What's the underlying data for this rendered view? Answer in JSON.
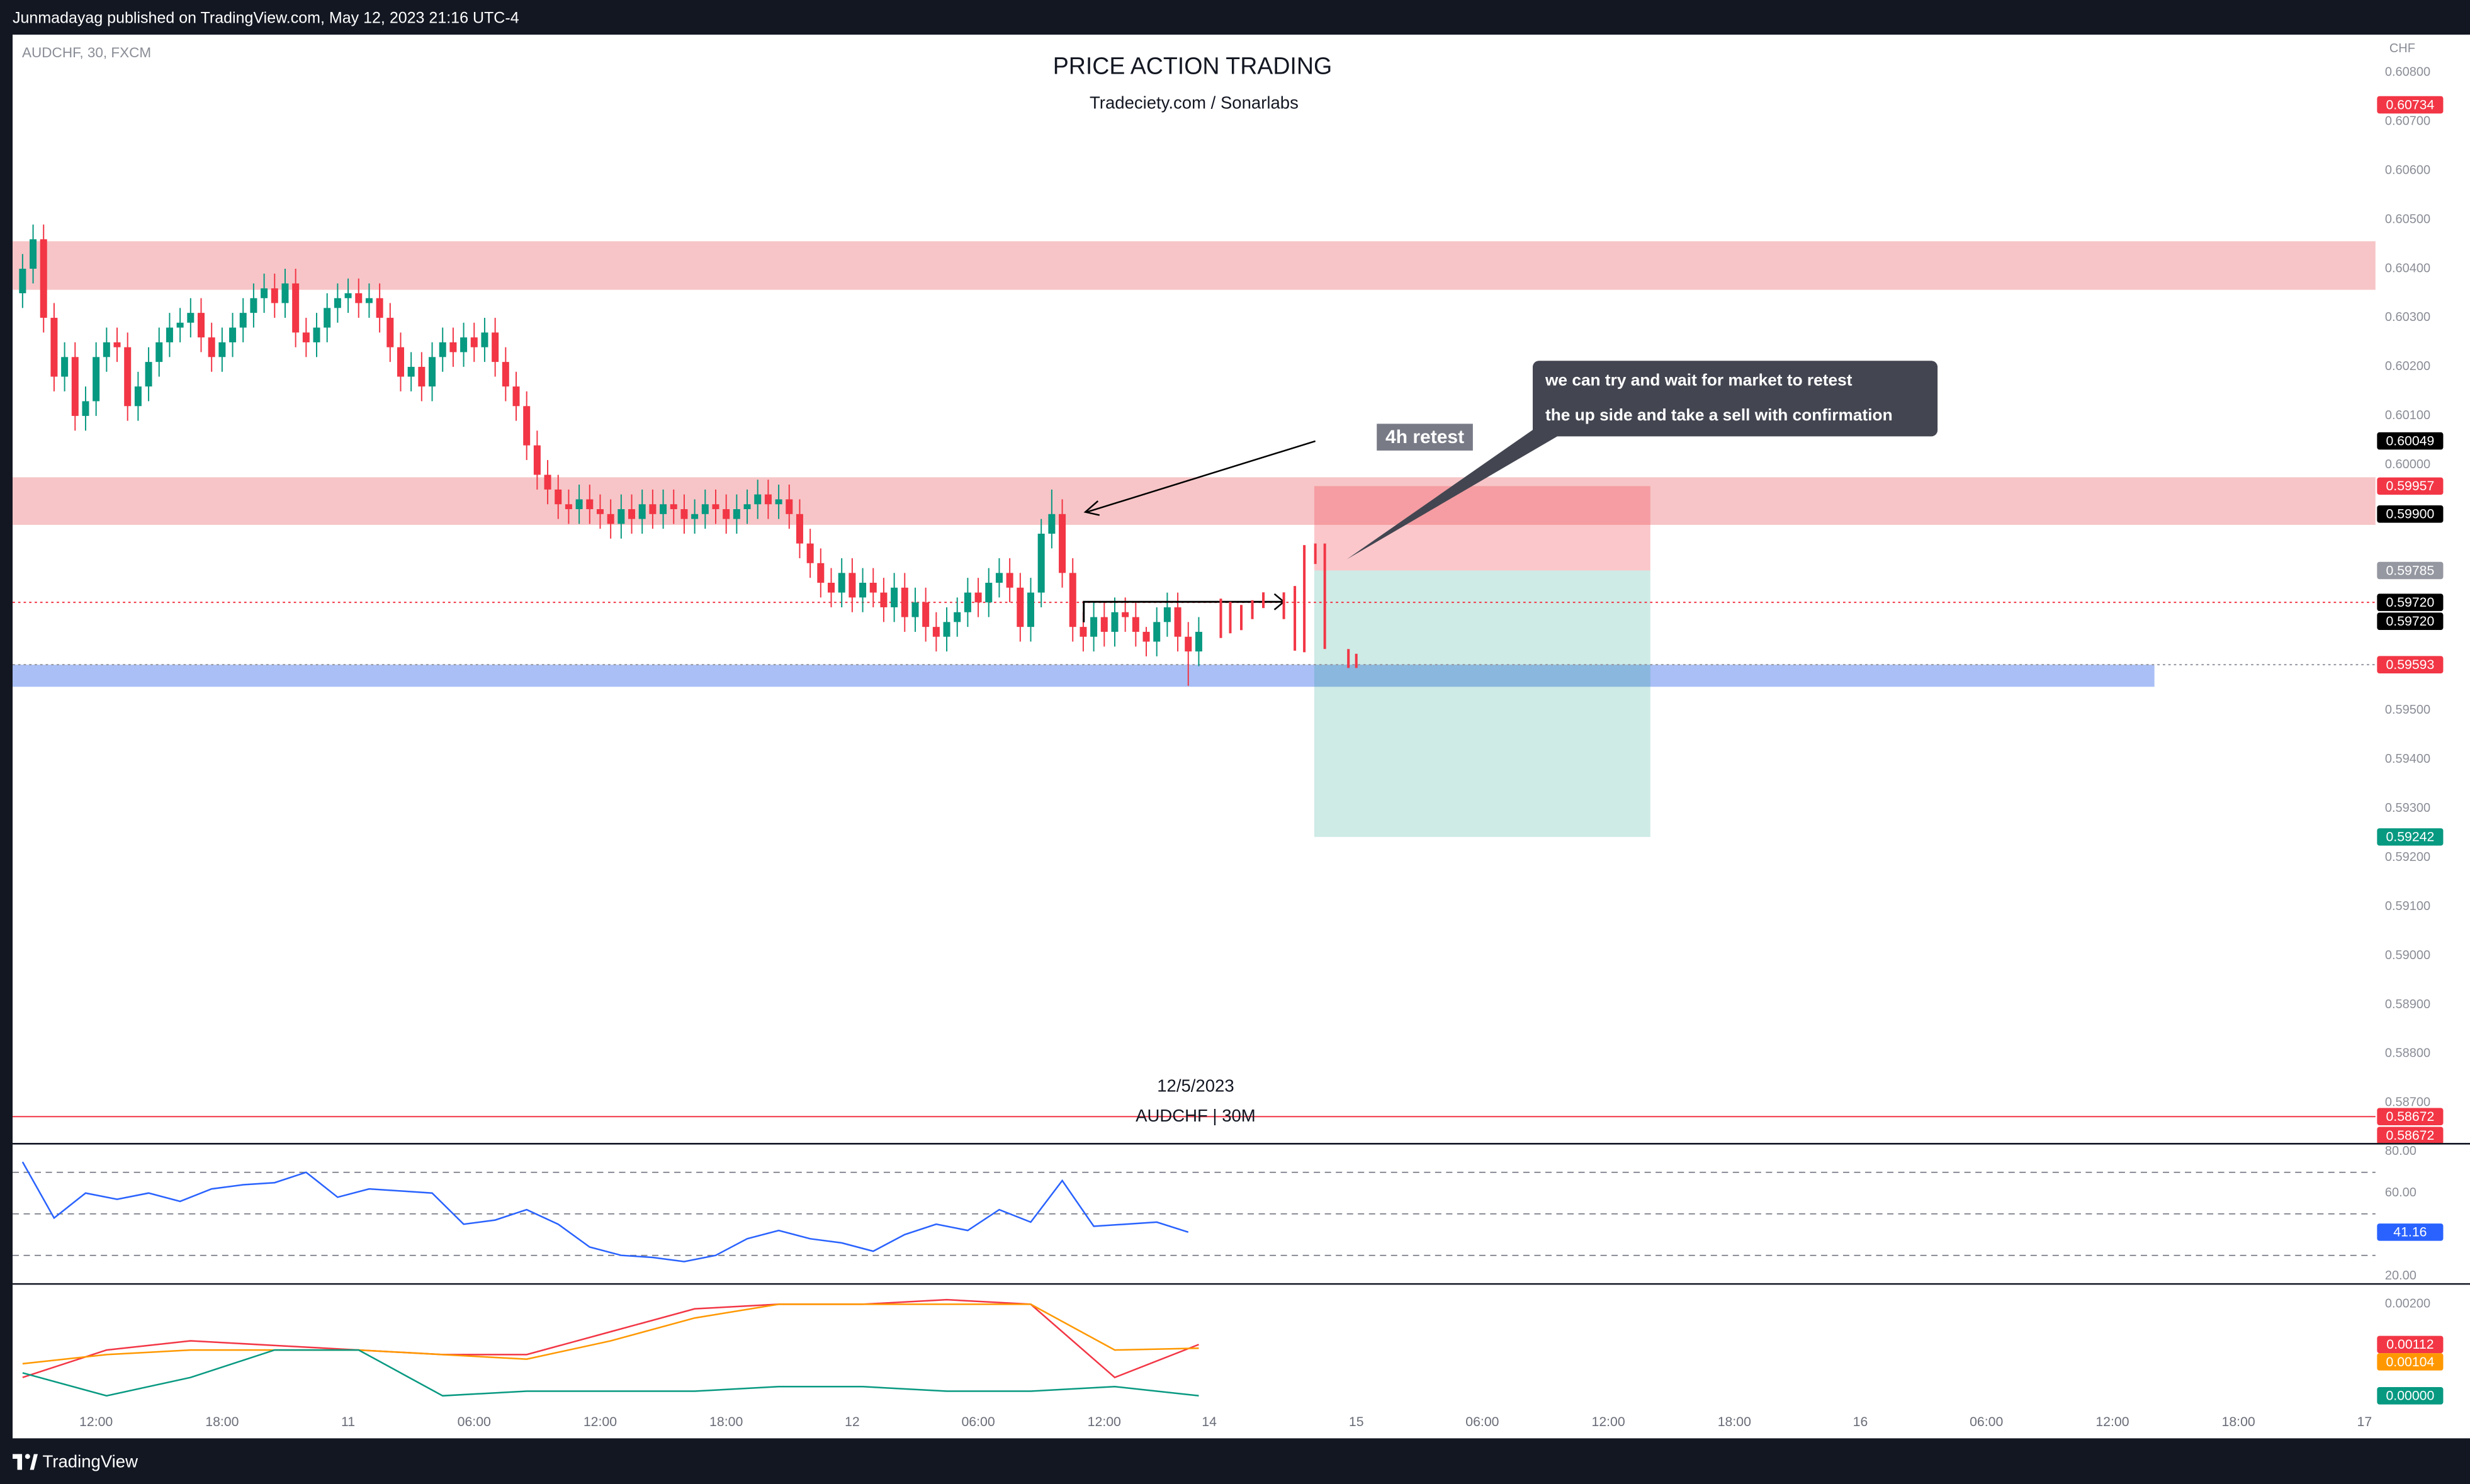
{
  "header": "Junmadayag published on TradingView.com, May 12, 2023 21:16 UTC-4",
  "footer": "TradingView",
  "annotations": {
    "retest": "4h retest",
    "note": [
      "we can try and wait for market to retest",
      "the up side and take a sell with confirmation"
    ],
    "date": "12/5/2023",
    "caption": "AUDCHF | 30M"
  },
  "chart_data": [
    {
      "type": "candlestick",
      "symbol": "AUDCHF, 30, FXCM",
      "title": "PRICE ACTION TRADING",
      "subtitle": "Tradeciety.com / Sonarlabs",
      "currency": "CHF",
      "up_color": "#089981",
      "down_color": "#f23645",
      "x": [
        -7,
        -6,
        -5,
        -4,
        -3,
        -2,
        -1,
        0,
        1,
        2,
        3,
        4,
        5,
        6,
        7,
        8,
        9,
        10,
        11,
        12,
        13,
        14,
        15,
        16,
        17,
        18,
        19,
        20,
        21,
        22,
        23,
        24,
        25,
        26,
        27,
        28,
        29,
        30,
        31,
        32,
        33,
        34,
        35,
        36,
        37,
        38,
        39,
        40,
        41,
        42,
        43,
        44,
        45,
        46,
        47,
        48,
        49,
        50,
        51,
        52,
        53,
        54,
        55,
        56,
        57,
        58,
        59,
        60,
        61,
        62,
        63,
        64,
        65,
        66,
        67,
        68,
        69,
        70,
        71,
        72,
        73,
        74,
        75,
        76,
        77,
        78,
        79,
        80,
        81,
        82,
        83,
        84,
        85,
        86,
        87,
        88,
        89,
        90,
        91,
        92,
        93,
        94,
        95,
        96,
        97,
        98,
        99,
        100,
        101,
        102,
        103,
        104,
        105
      ],
      "open": [
        0.6035,
        0.604,
        0.6046,
        0.603,
        0.6018,
        0.6022,
        0.601,
        0.6013,
        0.6022,
        0.6025,
        0.6024,
        0.6012,
        0.6016,
        0.6021,
        0.6025,
        0.6028,
        0.6029,
        0.6031,
        0.6026,
        0.6022,
        0.6025,
        0.6028,
        0.6031,
        0.6034,
        0.6036,
        0.6033,
        0.6037,
        0.6027,
        0.6025,
        0.6028,
        0.6032,
        0.6034,
        0.6035,
        0.6033,
        0.6034,
        0.603,
        0.6024,
        0.6018,
        0.602,
        0.6016,
        0.6022,
        0.6025,
        0.6023,
        0.6026,
        0.6024,
        0.6027,
        0.6021,
        0.6016,
        0.6012,
        0.6004,
        0.5998,
        0.5995,
        0.5992,
        0.5991,
        0.5993,
        0.5991,
        0.599,
        0.5988,
        0.5991,
        0.5989,
        0.5992,
        0.599,
        0.5992,
        0.5991,
        0.5989,
        0.599,
        0.5992,
        0.5991,
        0.5989,
        0.5991,
        0.5992,
        0.5994,
        0.5992,
        0.5993,
        0.599,
        0.5984,
        0.598,
        0.5976,
        0.5974,
        0.5978,
        0.5973,
        0.5976,
        0.5974,
        0.5971,
        0.5975,
        0.5969,
        0.5972,
        0.5967,
        0.5965,
        0.5968,
        0.597,
        0.5974,
        0.5972,
        0.5976,
        0.5978,
        0.5975,
        0.5967,
        0.5974,
        0.5986,
        0.599,
        0.5978,
        0.5967,
        0.5965,
        0.5969,
        0.5966,
        0.597,
        0.5969,
        0.5966,
        0.5964,
        0.5968,
        0.5971,
        0.5965,
        0.5962
      ],
      "high": [
        0.6043,
        0.6049,
        0.6049,
        0.6033,
        0.6025,
        0.6025,
        0.6016,
        0.6025,
        0.6028,
        0.6028,
        0.6027,
        0.6019,
        0.6024,
        0.6028,
        0.6031,
        0.6032,
        0.6034,
        0.6034,
        0.6029,
        0.6028,
        0.6031,
        0.6034,
        0.6037,
        0.6039,
        0.6039,
        0.604,
        0.604,
        0.603,
        0.6031,
        0.6035,
        0.6037,
        0.6038,
        0.6038,
        0.6037,
        0.6037,
        0.6033,
        0.6027,
        0.6023,
        0.6023,
        0.6025,
        0.6028,
        0.6028,
        0.6029,
        0.6029,
        0.603,
        0.603,
        0.6024,
        0.6019,
        0.6015,
        0.6007,
        0.6001,
        0.5998,
        0.5995,
        0.5996,
        0.5996,
        0.5994,
        0.5993,
        0.5994,
        0.5994,
        0.5995,
        0.5995,
        0.5995,
        0.5995,
        0.5994,
        0.5993,
        0.5995,
        0.5995,
        0.5994,
        0.5994,
        0.5995,
        0.5997,
        0.5997,
        0.5996,
        0.5996,
        0.5993,
        0.5987,
        0.5983,
        0.5979,
        0.5981,
        0.5981,
        0.5979,
        0.5979,
        0.5977,
        0.5978,
        0.5978,
        0.5975,
        0.5975,
        0.597,
        0.5971,
        0.5973,
        0.5977,
        0.5977,
        0.5979,
        0.5981,
        0.5981,
        0.5978,
        0.5977,
        0.5989,
        0.5995,
        0.5993,
        0.5981,
        0.597,
        0.5972,
        0.5972,
        0.5973,
        0.5973,
        0.5972,
        0.5967,
        0.5971,
        0.5974,
        0.5974,
        0.5968,
        0.5969
      ],
      "low": [
        0.6032,
        0.6037,
        0.6027,
        0.6015,
        0.6015,
        0.6007,
        0.6007,
        0.601,
        0.6019,
        0.6021,
        0.6009,
        0.6009,
        0.6013,
        0.6018,
        0.6022,
        0.6025,
        0.6026,
        0.6023,
        0.6019,
        0.6019,
        0.6022,
        0.6025,
        0.6028,
        0.6031,
        0.603,
        0.603,
        0.6024,
        0.6022,
        0.6022,
        0.6025,
        0.6029,
        0.6031,
        0.603,
        0.603,
        0.6027,
        0.6021,
        0.6015,
        0.6015,
        0.6013,
        0.6013,
        0.6019,
        0.602,
        0.602,
        0.6021,
        0.6021,
        0.6018,
        0.6013,
        0.6009,
        0.6001,
        0.5995,
        0.5992,
        0.5989,
        0.5988,
        0.5988,
        0.5988,
        0.5987,
        0.5985,
        0.5985,
        0.5986,
        0.5986,
        0.5987,
        0.5987,
        0.5988,
        0.5986,
        0.5986,
        0.5987,
        0.5988,
        0.5986,
        0.5986,
        0.5988,
        0.5989,
        0.5989,
        0.5989,
        0.5987,
        0.5981,
        0.5977,
        0.5973,
        0.5971,
        0.5971,
        0.597,
        0.597,
        0.5971,
        0.5968,
        0.5968,
        0.5966,
        0.5966,
        0.5964,
        0.5962,
        0.5962,
        0.5965,
        0.5967,
        0.5969,
        0.5969,
        0.5973,
        0.5972,
        0.5964,
        0.5964,
        0.5971,
        0.5983,
        0.5975,
        0.5964,
        0.5962,
        0.5962,
        0.5963,
        0.5963,
        0.5966,
        0.5963,
        0.5961,
        0.5961,
        0.5965,
        0.5962,
        0.5955,
        0.5959
      ],
      "close": [
        0.604,
        0.6046,
        0.603,
        0.6018,
        0.6022,
        0.601,
        0.6013,
        0.6022,
        0.6025,
        0.6024,
        0.6012,
        0.6016,
        0.6021,
        0.6025,
        0.6028,
        0.6029,
        0.6031,
        0.6026,
        0.6022,
        0.6025,
        0.6028,
        0.6031,
        0.6034,
        0.6036,
        0.6033,
        0.6037,
        0.6027,
        0.6025,
        0.6028,
        0.6032,
        0.6034,
        0.6035,
        0.6033,
        0.6034,
        0.603,
        0.6024,
        0.6018,
        0.602,
        0.6016,
        0.6022,
        0.6025,
        0.6023,
        0.6026,
        0.6024,
        0.6027,
        0.6021,
        0.6016,
        0.6012,
        0.6004,
        0.5998,
        0.5995,
        0.5992,
        0.5991,
        0.5993,
        0.5991,
        0.599,
        0.5988,
        0.5991,
        0.5989,
        0.5992,
        0.599,
        0.5992,
        0.5991,
        0.5989,
        0.599,
        0.5992,
        0.5991,
        0.5989,
        0.5991,
        0.5992,
        0.5994,
        0.5992,
        0.5993,
        0.599,
        0.5984,
        0.598,
        0.5976,
        0.5974,
        0.5978,
        0.5973,
        0.5976,
        0.5974,
        0.5971,
        0.5975,
        0.5969,
        0.5972,
        0.5967,
        0.5965,
        0.5968,
        0.597,
        0.5974,
        0.5972,
        0.5976,
        0.5978,
        0.5975,
        0.5967,
        0.5974,
        0.5986,
        0.599,
        0.5978,
        0.5967,
        0.5965,
        0.5969,
        0.5966,
        0.597,
        0.5969,
        0.5966,
        0.5964,
        0.5968,
        0.5971,
        0.5965,
        0.5962,
        0.5966
      ],
      "xlim": [
        -7.95,
        217.05
      ],
      "ylim": [
        0.5862,
        0.60877
      ],
      "xticks": [
        {
          "value": 0,
          "label": "12:00"
        },
        {
          "value": 12,
          "label": "18:00"
        },
        {
          "value": 24,
          "label": "11"
        },
        {
          "value": 36,
          "label": "06:00"
        },
        {
          "value": 48,
          "label": "12:00"
        },
        {
          "value": 60,
          "label": "18:00"
        },
        {
          "value": 72,
          "label": "12"
        },
        {
          "value": 84,
          "label": "06:00"
        },
        {
          "value": 96,
          "label": "12:00"
        },
        {
          "value": 106,
          "label": "14"
        },
        {
          "value": 120,
          "label": "15"
        },
        {
          "value": 132,
          "label": "06:00"
        },
        {
          "value": 144,
          "label": "12:00"
        },
        {
          "value": 156,
          "label": "18:00"
        },
        {
          "value": 168,
          "label": "16"
        },
        {
          "value": 180,
          "label": "06:00"
        },
        {
          "value": 192,
          "label": "12:00"
        },
        {
          "value": 204,
          "label": "18:00"
        },
        {
          "value": 216,
          "label": "17"
        }
      ],
      "yticks": [
        {
          "value": 0.608,
          "label": "0.60800"
        },
        {
          "value": 0.607,
          "label": "0.60700"
        },
        {
          "value": 0.606,
          "label": "0.60600"
        },
        {
          "value": 0.605,
          "label": "0.60500"
        },
        {
          "value": 0.604,
          "label": "0.60400"
        },
        {
          "value": 0.603,
          "label": "0.60300"
        },
        {
          "value": 0.602,
          "label": "0.60200"
        },
        {
          "value": 0.601,
          "label": "0.60100"
        },
        {
          "value": 0.6,
          "label": "0.60000"
        },
        {
          "value": 0.595,
          "label": "0.59500"
        },
        {
          "value": 0.594,
          "label": "0.59400"
        },
        {
          "value": 0.593,
          "label": "0.59300"
        },
        {
          "value": 0.592,
          "label": "0.59200"
        },
        {
          "value": 0.591,
          "label": "0.59100"
        },
        {
          "value": 0.59,
          "label": "0.59000"
        },
        {
          "value": 0.589,
          "label": "0.58900"
        },
        {
          "value": 0.588,
          "label": "0.58800"
        },
        {
          "value": 0.587,
          "label": "0.58700"
        }
      ],
      "zones": [
        {
          "from": 0.60456,
          "to": 0.60357,
          "color": "#f7c5c7"
        },
        {
          "from": 0.59975,
          "to": 0.59878,
          "color": "#f7c5c7"
        },
        {
          "from": 0.59593,
          "to": 0.59548,
          "color": "#a9bff5",
          "x_end": 196
        }
      ],
      "position": {
        "entry": 0.59785,
        "stop": 0.59957,
        "target": 0.59242,
        "x": [
          116,
          148
        ]
      },
      "price_labels": [
        {
          "value": 0.60734,
          "label": "0.60734",
          "color": "#f23645"
        },
        {
          "value": 0.60049,
          "label": "0.60049",
          "color": "#000000"
        },
        {
          "value": 0.59957,
          "label": "0.59957",
          "color": "#f23645"
        },
        {
          "value": 0.599,
          "label": "0.59900",
          "color": "#000000"
        },
        {
          "value": 0.59785,
          "label": "0.59785",
          "color": "#9598a1"
        },
        {
          "value": 0.5972,
          "label": "0.59720",
          "color": "#000000",
          "line": "dotted",
          "line_color": "#f23645"
        },
        {
          "value": 0.5972,
          "label": "0.59720",
          "color": "#000000"
        },
        {
          "value": 0.59593,
          "label": "0.59593",
          "color": "#f23645",
          "line": "dotted",
          "line_color": "#9598a1"
        },
        {
          "value": 0.59242,
          "label": "0.59242",
          "color": "#089981"
        },
        {
          "value": 0.58672,
          "label": "0.58672",
          "color": "#f23645",
          "line": "solid",
          "line_color": "#f23645"
        },
        {
          "value": 0.58672,
          "label": "0.58672",
          "color": "#f23645"
        }
      ]
    },
    {
      "type": "line",
      "x": [
        -7,
        -4,
        -1,
        2,
        5,
        8,
        11,
        14,
        17,
        20,
        23,
        26,
        29,
        32,
        35,
        38,
        41,
        44,
        47,
        50,
        53,
        56,
        59,
        62,
        65,
        68,
        71,
        74,
        77,
        80,
        83,
        86,
        89,
        92,
        95,
        98,
        101,
        104
      ],
      "series": [
        {
          "color": "#2962ff",
          "values": [
            75,
            48,
            60,
            57,
            60,
            56,
            62,
            64,
            65,
            70,
            58,
            62,
            61,
            60,
            45,
            47,
            52,
            45,
            34,
            30,
            29,
            27,
            30,
            38,
            42,
            38,
            36,
            32,
            40,
            45,
            42,
            52,
            46,
            66,
            44,
            45,
            46,
            41.16
          ],
          "last_label": "41.16"
        }
      ],
      "bands": [
        70,
        50,
        30
      ],
      "ylim": [
        17,
        83
      ],
      "yticks": [
        {
          "value": 80,
          "label": "80.00"
        },
        {
          "value": 60,
          "label": "60.00"
        },
        {
          "value": 20,
          "label": "20.00"
        }
      ]
    },
    {
      "type": "line",
      "x": [
        -7,
        1,
        9,
        17,
        25,
        33,
        41,
        49,
        57,
        65,
        73,
        81,
        89,
        97,
        105
      ],
      "series": [
        {
          "color": "#f23645",
          "values": [
            0.0004,
            0.001,
            0.0012,
            0.0011,
            0.001,
            0.0009,
            0.0009,
            0.0014,
            0.0019,
            0.002,
            0.002,
            0.0021,
            0.002,
            0.0004,
            0.00112
          ],
          "last_label": "0.00112"
        },
        {
          "color": "#ff9800",
          "values": [
            0.0007,
            0.0009,
            0.001,
            0.001,
            0.001,
            0.0009,
            0.0008,
            0.0012,
            0.0017,
            0.002,
            0.002,
            0.002,
            0.002,
            0.001,
            0.00104
          ],
          "last_label": "0.00104"
        },
        {
          "color": "#089981",
          "values": [
            0.0005,
            0,
            0.0004,
            0.001,
            0.001,
            0,
            0.0001,
            0.0001,
            0.0001,
            0.0002,
            0.0002,
            0.0001,
            0.0001,
            0.0002,
            0
          ],
          "last_label": "0.00000"
        }
      ],
      "ylim": [
        -0.00093,
        0.00241
      ],
      "yticks": [
        {
          "value": 0.002,
          "label": "0.00200"
        }
      ]
    }
  ]
}
